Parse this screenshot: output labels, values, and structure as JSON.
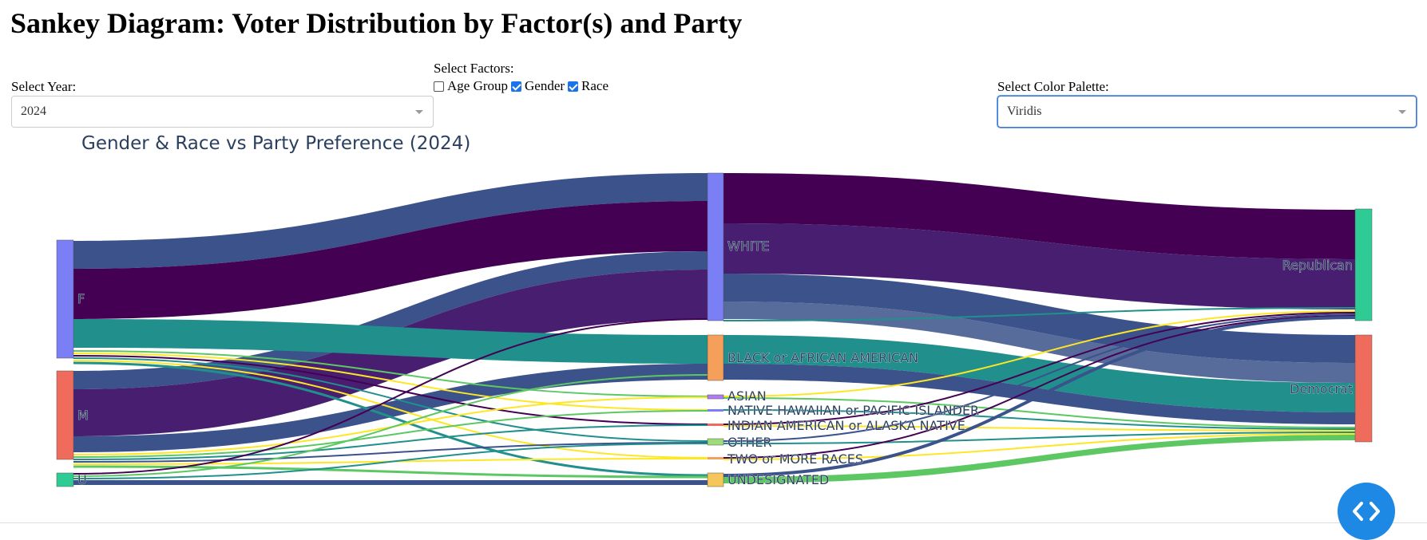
{
  "header": {
    "title": "Sankey Diagram: Voter Distribution by Factor(s) and Party"
  },
  "controls": {
    "year_label": "Select Year:",
    "year_value": "2024",
    "factors_label": "Select Factors:",
    "factors": [
      {
        "label": "Age Group",
        "checked": false
      },
      {
        "label": "Gender",
        "checked": true
      },
      {
        "label": "Race",
        "checked": true
      }
    ],
    "palette_label": "Select Color Palette:",
    "palette_value": "Viridis"
  },
  "chart": {
    "title": "Gender & Race vs Party Preference (2024)",
    "nodes": {
      "gender": [
        "F",
        "M",
        "U"
      ],
      "race": [
        "WHITE",
        "BLACK or AFRICAN AMERICAN",
        "ASIAN",
        "NATIVE HAWAIIAN or PACIFIC ISLANDER",
        "INDIAN AMERICAN or ALASKA NATIVE",
        "OTHER",
        "TWO or MORE RACES",
        "UNDESIGNATED"
      ],
      "party": [
        "Republican",
        "Democrat"
      ]
    },
    "colors": {
      "viridis": [
        "#440154",
        "#481f70",
        "#3b528b",
        "#21908c",
        "#5dc863",
        "#fde725"
      ],
      "node_gender_f": "#7b7ff5",
      "node_gender_m": "#ef6b5b",
      "node_gender_u": "#2ecc94",
      "node_white": "#7b7ff5",
      "node_black": "#f5a05a",
      "node_asian": "#b07cf5",
      "node_other": "#9edb7a",
      "node_undesignated": "#f5c65a",
      "node_republican": "#2ecc94",
      "node_democrat": "#ef6b5b"
    }
  },
  "fab": {
    "icon": "code-icon"
  }
}
